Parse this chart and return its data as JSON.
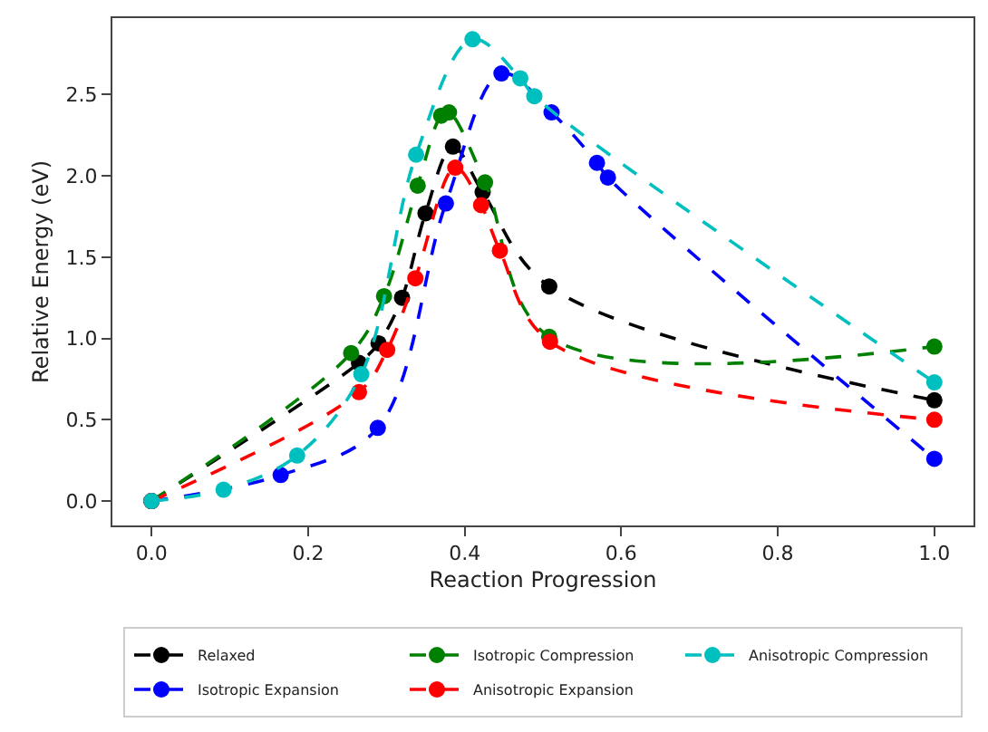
{
  "chart_data": {
    "type": "line",
    "xlabel": "Reaction Progression",
    "ylabel": "Relative Energy (eV)",
    "xlim": [
      -0.05,
      1.05
    ],
    "ylim": [
      -0.15,
      2.97
    ],
    "xticks": [
      {
        "value": 0,
        "label": "0.0"
      },
      {
        "value": 0.2,
        "label": "0.2"
      },
      {
        "value": 0.4,
        "label": "0.4"
      },
      {
        "value": 0.6,
        "label": "0.6"
      },
      {
        "value": 0.8,
        "label": "0.8"
      },
      {
        "value": 1,
        "label": "1.0"
      }
    ],
    "yticks": [
      {
        "value": 0,
        "label": "0.0"
      },
      {
        "value": 0.5,
        "label": "0.5"
      },
      {
        "value": 1,
        "label": "1.0"
      },
      {
        "value": 1.5,
        "label": "1.5"
      },
      {
        "value": 2,
        "label": "2.0"
      },
      {
        "value": 2.5,
        "label": "2.5"
      }
    ],
    "marker": "circle",
    "line_style": "dashed",
    "legend": "bottom",
    "series": [
      {
        "name": "Relaxed",
        "color": "#000000",
        "x": [
          0,
          0.265,
          0.29,
          0.32,
          0.35,
          0.385,
          0.423,
          0.508,
          1.0
        ],
        "values": [
          0,
          0.85,
          0.97,
          1.25,
          1.77,
          2.18,
          1.9,
          1.32,
          0.62
        ]
      },
      {
        "name": "Isotropic Expansion",
        "color": "#0000ff",
        "x": [
          0,
          0.165,
          0.289,
          0.376,
          0.447,
          0.511,
          0.569,
          0.583,
          1.0
        ],
        "values": [
          0,
          0.16,
          0.45,
          1.83,
          2.63,
          2.39,
          2.08,
          1.99,
          0.26
        ]
      },
      {
        "name": "Isotropic Compression",
        "color": "#008000",
        "x": [
          0,
          0.255,
          0.297,
          0.34,
          0.37,
          0.38,
          0.426,
          0.508,
          1.0
        ],
        "values": [
          0,
          0.91,
          1.26,
          1.94,
          2.37,
          2.39,
          1.96,
          1.01,
          0.95
        ]
      },
      {
        "name": "Anisotropic Expansion",
        "color": "#ff0000",
        "x": [
          0,
          0.265,
          0.301,
          0.337,
          0.388,
          0.421,
          0.445,
          0.509,
          1.0
        ],
        "values": [
          0,
          0.67,
          0.93,
          1.37,
          2.05,
          1.82,
          1.54,
          0.98,
          0.5
        ]
      },
      {
        "name": "Anisotropic Compression",
        "color": "#00bfbf",
        "x": [
          0,
          0.092,
          0.186,
          0.268,
          0.338,
          0.41,
          0.471,
          0.489,
          1.0
        ],
        "values": [
          0,
          0.07,
          0.28,
          0.78,
          2.13,
          2.84,
          2.6,
          2.49,
          0.73
        ]
      }
    ]
  }
}
